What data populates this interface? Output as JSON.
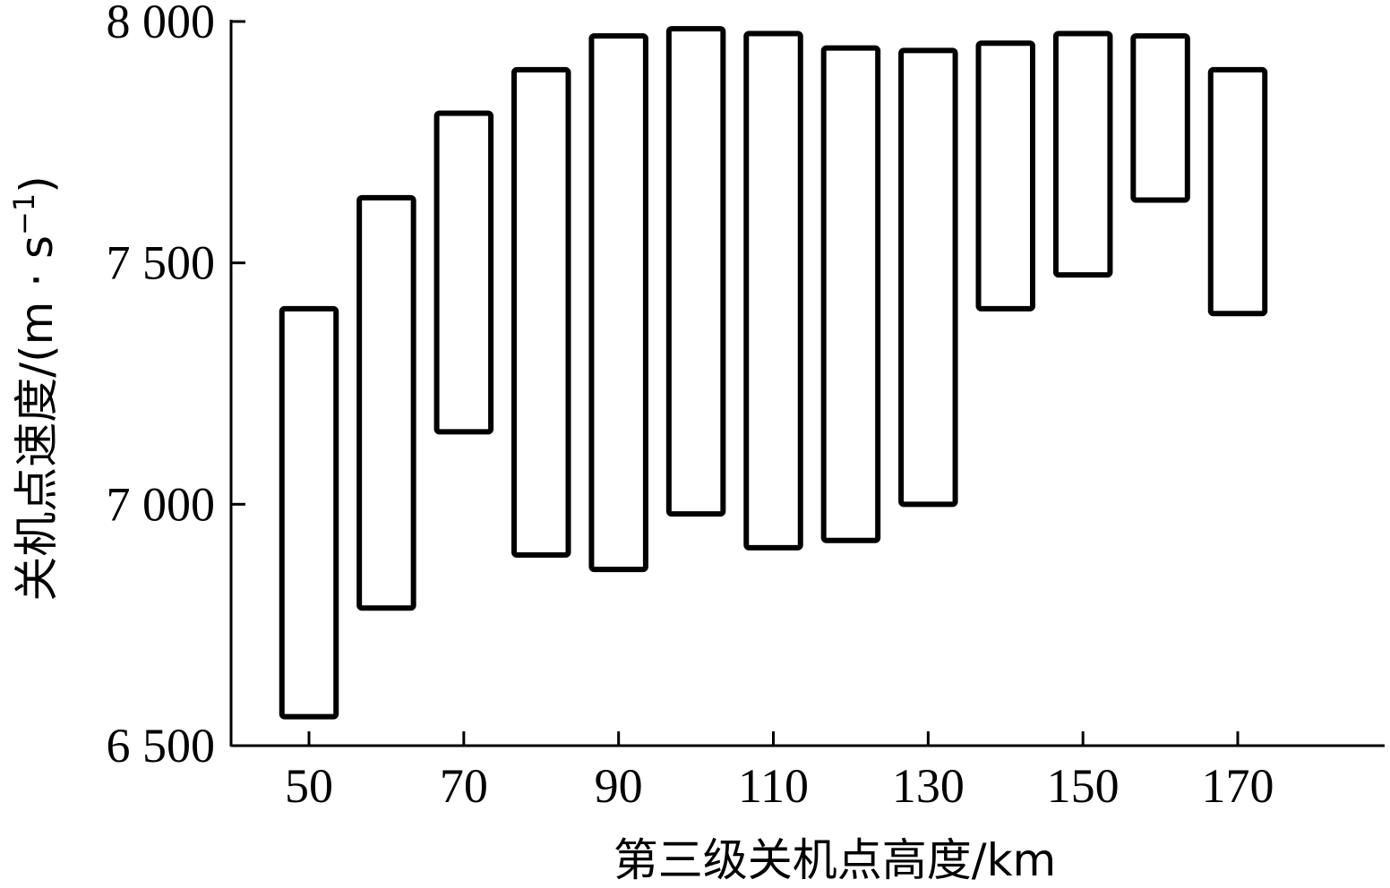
{
  "chart_data": {
    "type": "floating-bar",
    "xlabel": "第三级关机点高度/km",
    "ylabel": "关机点速度/(m · s",
    "ylabel_sup": "−1",
    "ylabel_close": ")",
    "ylim": [
      6500,
      8000
    ],
    "yticks": [
      6500,
      7000,
      7500,
      8000
    ],
    "ytick_labels": [
      "6 500",
      "7 000",
      "7 500",
      "8 000"
    ],
    "xlim": [
      40,
      180
    ],
    "xticks": [
      50,
      70,
      90,
      110,
      130,
      150,
      170
    ],
    "xtick_labels": [
      "50",
      "70",
      "90",
      "110",
      "130",
      "150",
      "170"
    ],
    "bars": [
      {
        "x": 50,
        "low": 6560,
        "high": 7405
      },
      {
        "x": 60,
        "low": 6785,
        "high": 7635
      },
      {
        "x": 70,
        "low": 7150,
        "high": 7810
      },
      {
        "x": 80,
        "low": 6895,
        "high": 7900
      },
      {
        "x": 90,
        "low": 6865,
        "high": 7970
      },
      {
        "x": 100,
        "low": 6980,
        "high": 7985
      },
      {
        "x": 110,
        "low": 6910,
        "high": 7975
      },
      {
        "x": 120,
        "low": 6925,
        "high": 7945
      },
      {
        "x": 130,
        "low": 7000,
        "high": 7940
      },
      {
        "x": 140,
        "low": 7405,
        "high": 7955
      },
      {
        "x": 150,
        "low": 7475,
        "high": 7975
      },
      {
        "x": 160,
        "low": 7630,
        "high": 7970
      },
      {
        "x": 170,
        "low": 7395,
        "high": 7900
      }
    ],
    "bar_width_units": 7,
    "grid": false,
    "legend": "none"
  }
}
